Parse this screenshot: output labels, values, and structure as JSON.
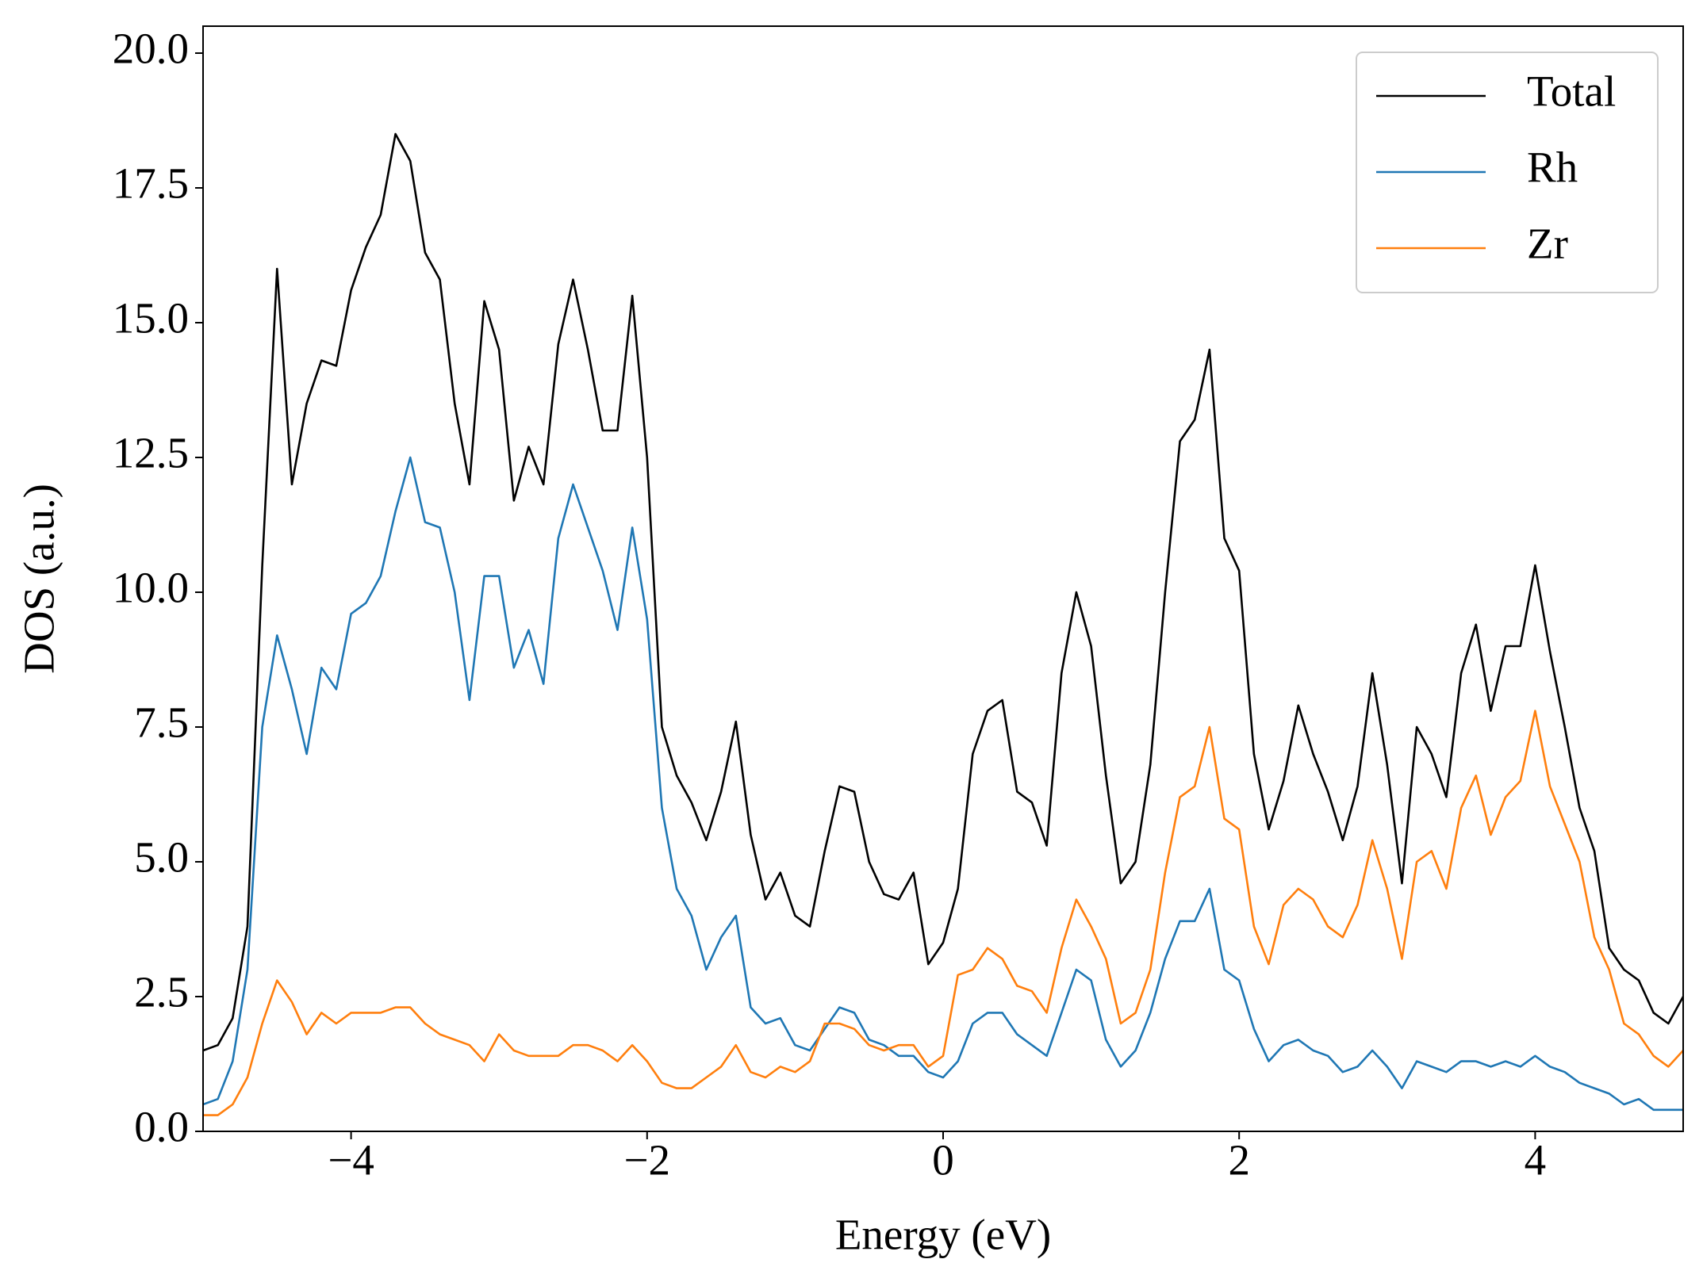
{
  "chart_data": {
    "type": "line",
    "xlabel": "Energy (eV)",
    "ylabel": "DOS (a.u.)",
    "x": [
      -5.0,
      -4.9,
      -4.8,
      -4.7,
      -4.6,
      -4.5,
      -4.4,
      -4.3,
      -4.2,
      -4.1,
      -4.0,
      -3.9,
      -3.8,
      -3.7,
      -3.6,
      -3.5,
      -3.4,
      -3.3,
      -3.2,
      -3.1,
      -3.0,
      -2.9,
      -2.8,
      -2.7,
      -2.6,
      -2.5,
      -2.4,
      -2.3,
      -2.2,
      -2.1,
      -2.0,
      -1.9,
      -1.8,
      -1.7,
      -1.6,
      -1.5,
      -1.4,
      -1.3,
      -1.2,
      -1.1,
      -1.0,
      -0.9,
      -0.8,
      -0.7,
      -0.6,
      -0.5,
      -0.4,
      -0.3,
      -0.2,
      -0.1,
      0.0,
      0.1,
      0.2,
      0.3,
      0.4,
      0.5,
      0.6,
      0.7,
      0.8,
      0.9,
      1.0,
      1.1,
      1.2,
      1.3,
      1.4,
      1.5,
      1.6,
      1.7,
      1.8,
      1.9,
      2.0,
      2.1,
      2.2,
      2.3,
      2.4,
      2.5,
      2.6,
      2.7,
      2.8,
      2.9,
      3.0,
      3.1,
      3.2,
      3.3,
      3.4,
      3.5,
      3.6,
      3.7,
      3.8,
      3.9,
      4.0,
      4.1,
      4.2,
      4.3,
      4.4,
      4.5,
      4.6,
      4.7,
      4.8,
      4.9,
      5.0
    ],
    "series": [
      {
        "name": "Total",
        "color": "#000000",
        "values": [
          1.5,
          1.6,
          2.1,
          3.8,
          10.5,
          16.0,
          12.0,
          13.5,
          14.3,
          14.2,
          15.6,
          16.4,
          17.0,
          18.5,
          18.0,
          16.3,
          15.8,
          13.5,
          12.0,
          15.4,
          14.5,
          11.7,
          12.7,
          12.0,
          14.6,
          15.8,
          14.5,
          13.0,
          13.0,
          15.5,
          12.5,
          7.5,
          6.6,
          6.1,
          5.4,
          6.3,
          7.6,
          5.5,
          4.3,
          4.8,
          4.0,
          3.8,
          5.2,
          6.4,
          6.3,
          5.0,
          4.4,
          4.3,
          4.8,
          3.1,
          3.5,
          4.5,
          7.0,
          7.8,
          8.0,
          6.3,
          6.1,
          5.3,
          8.5,
          10.0,
          9.0,
          6.6,
          4.6,
          5.0,
          6.8,
          10.0,
          12.8,
          13.2,
          14.5,
          11.0,
          10.4,
          7.0,
          5.6,
          6.5,
          7.9,
          7.0,
          6.3,
          5.4,
          6.4,
          8.5,
          6.8,
          4.6,
          7.5,
          7.0,
          6.2,
          8.5,
          9.4,
          7.8,
          9.0,
          9.0,
          10.5,
          8.9,
          7.5,
          6.0,
          5.2,
          3.4,
          3.0,
          2.8,
          2.2,
          2.0,
          2.5
        ]
      },
      {
        "name": "Rh",
        "color": "#1f77b4",
        "values": [
          0.5,
          0.6,
          1.3,
          3.0,
          7.5,
          9.2,
          8.2,
          7.0,
          8.6,
          8.2,
          9.6,
          9.8,
          10.3,
          11.5,
          12.5,
          11.3,
          11.2,
          10.0,
          8.0,
          10.3,
          10.3,
          8.6,
          9.3,
          8.3,
          11.0,
          12.0,
          11.2,
          10.4,
          9.3,
          11.2,
          9.5,
          6.0,
          4.5,
          4.0,
          3.0,
          3.6,
          4.0,
          2.3,
          2.0,
          2.1,
          1.6,
          1.5,
          1.9,
          2.3,
          2.2,
          1.7,
          1.6,
          1.4,
          1.4,
          1.1,
          1.0,
          1.3,
          2.0,
          2.2,
          2.2,
          1.8,
          1.6,
          1.4,
          2.2,
          3.0,
          2.8,
          1.7,
          1.2,
          1.5,
          2.2,
          3.2,
          3.9,
          3.9,
          4.5,
          3.0,
          2.8,
          1.9,
          1.3,
          1.6,
          1.7,
          1.5,
          1.4,
          1.1,
          1.2,
          1.5,
          1.2,
          0.8,
          1.3,
          1.2,
          1.1,
          1.3,
          1.3,
          1.2,
          1.3,
          1.2,
          1.4,
          1.2,
          1.1,
          0.9,
          0.8,
          0.7,
          0.5,
          0.6,
          0.4,
          0.4,
          0.4
        ]
      },
      {
        "name": "Zr",
        "color": "#ff7f0e",
        "values": [
          0.3,
          0.3,
          0.5,
          1.0,
          2.0,
          2.8,
          2.4,
          1.8,
          2.2,
          2.0,
          2.2,
          2.2,
          2.2,
          2.3,
          2.3,
          2.0,
          1.8,
          1.7,
          1.6,
          1.3,
          1.8,
          1.5,
          1.4,
          1.4,
          1.4,
          1.6,
          1.6,
          1.5,
          1.3,
          1.6,
          1.3,
          0.9,
          0.8,
          0.8,
          1.0,
          1.2,
          1.6,
          1.1,
          1.0,
          1.2,
          1.1,
          1.3,
          2.0,
          2.0,
          1.9,
          1.6,
          1.5,
          1.6,
          1.6,
          1.2,
          1.4,
          2.9,
          3.0,
          3.4,
          3.2,
          2.7,
          2.6,
          2.2,
          3.4,
          4.3,
          3.8,
          3.2,
          2.0,
          2.2,
          3.0,
          4.8,
          6.2,
          6.4,
          7.5,
          5.8,
          5.6,
          3.8,
          3.1,
          4.2,
          4.5,
          4.3,
          3.8,
          3.6,
          4.2,
          5.4,
          4.5,
          3.2,
          5.0,
          5.2,
          4.5,
          6.0,
          6.6,
          5.5,
          6.2,
          6.5,
          7.8,
          6.4,
          5.7,
          5.0,
          3.6,
          3.0,
          2.0,
          1.8,
          1.4,
          1.2,
          1.5
        ]
      }
    ],
    "xlim": [
      -5,
      5
    ],
    "xticks": [
      {
        "value": -4,
        "label": "−4"
      },
      {
        "value": -2,
        "label": "−2"
      },
      0,
      2,
      4
    ],
    "ylim": [
      0,
      20.5
    ],
    "yticks": [
      {
        "value": 0,
        "label": "0.0"
      },
      2.5,
      {
        "value": 5,
        "label": "5.0"
      },
      7.5,
      {
        "value": 10,
        "label": "10.0"
      },
      12.5,
      {
        "value": 15,
        "label": "15.0"
      },
      17.5,
      {
        "value": 20,
        "label": "20.0"
      }
    ],
    "grid": false,
    "legend": "upper right"
  }
}
